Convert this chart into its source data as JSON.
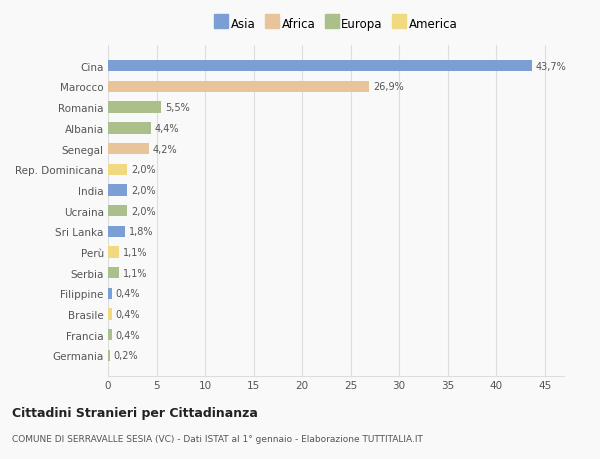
{
  "categories": [
    "Germania",
    "Francia",
    "Brasile",
    "Filippine",
    "Serbia",
    "Perù",
    "Sri Lanka",
    "Ucraina",
    "India",
    "Rep. Dominicana",
    "Senegal",
    "Albania",
    "Romania",
    "Marocco",
    "Cina"
  ],
  "values": [
    0.2,
    0.4,
    0.4,
    0.4,
    1.1,
    1.1,
    1.8,
    2.0,
    2.0,
    2.0,
    4.2,
    4.4,
    5.5,
    26.9,
    43.7
  ],
  "labels": [
    "0,2%",
    "0,4%",
    "0,4%",
    "0,4%",
    "1,1%",
    "1,1%",
    "1,8%",
    "2,0%",
    "2,0%",
    "2,0%",
    "4,2%",
    "4,4%",
    "5,5%",
    "26,9%",
    "43,7%"
  ],
  "legend_labels": [
    "Asia",
    "Africa",
    "Europa",
    "America"
  ],
  "legend_colors": [
    "#7b9fd4",
    "#e8c49a",
    "#aabf8a",
    "#f0d980"
  ],
  "title": "Cittadini Stranieri per Cittadinanza",
  "subtitle": "COMUNE DI SERRAVALLE SESIA (VC) - Dati ISTAT al 1° gennaio - Elaborazione TUTTITALIA.IT",
  "xlim": [
    0,
    47
  ],
  "xticks": [
    0,
    5,
    10,
    15,
    20,
    25,
    30,
    35,
    40,
    45
  ],
  "bar_height": 0.55,
  "background_color": "#f9f9f9",
  "grid_color": "#dddddd",
  "text_color": "#555555",
  "bar_color_map": {
    "Cina": "#7b9fd4",
    "Marocco": "#e8c49a",
    "Romania": "#aabf8a",
    "Albania": "#aabf8a",
    "Senegal": "#e8c49a",
    "Rep. Dominicana": "#f0d980",
    "India": "#7b9fd4",
    "Ucraina": "#aabf8a",
    "Sri Lanka": "#7b9fd4",
    "Perù": "#f0d980",
    "Serbia": "#aabf8a",
    "Filippine": "#7b9fd4",
    "Brasile": "#f0d980",
    "Francia": "#aabf8a",
    "Germania": "#aabf8a"
  }
}
